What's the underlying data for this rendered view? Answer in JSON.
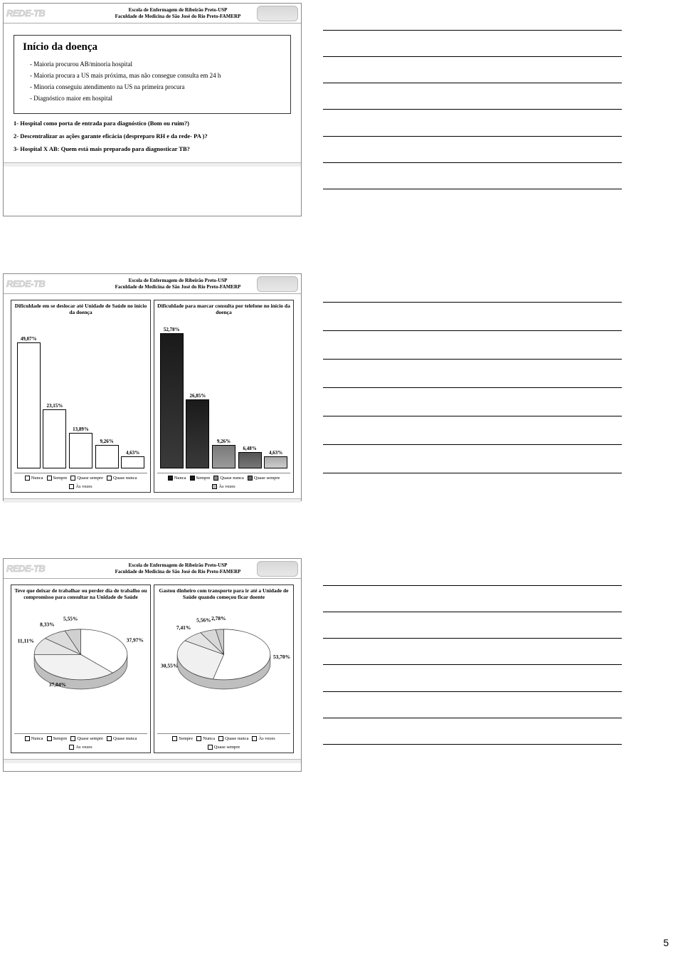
{
  "page_number": "5",
  "header": {
    "logo": "REDE-TB",
    "line1": "Escola de Enfermagem de Ribeirão Preto-USP",
    "line2": "Faculdade de Medicina de São José do Rio Preto-FAMERP"
  },
  "slide1": {
    "title": "Início da doença",
    "bullets": [
      "Maioria procurou  AB/minoria hospital",
      "Maioria procura a US mais próxima, mas não consegue consulta em 24 h",
      "Minoria conseguiu atendimento na US na primeira procura",
      "Diagnóstico maior em hospital"
    ],
    "questions": [
      "1- Hospital como porta de entrada para diagnóstico (Bom ou ruim?)",
      "2- Descentralizar as ações garante eficácia (despreparo RH e da rede- PA )?",
      "3- Hospital X AB: Quem está mais preparado para diagnosticar TB?"
    ]
  },
  "slide2": {
    "chart_left": {
      "title": "Dificuldade em se deslocar até Unidade de Saúde no início da doença",
      "type": "bar",
      "max": 52.78,
      "bars": [
        {
          "label": "49,07%",
          "value": 49.07,
          "cls": "white"
        },
        {
          "label": "23,15%",
          "value": 23.15,
          "cls": "white"
        },
        {
          "label": "13,89%",
          "value": 13.89,
          "cls": "white"
        },
        {
          "label": "9,26%",
          "value": 9.26,
          "cls": "white"
        },
        {
          "label": "4,63%",
          "value": 4.63,
          "cls": "white"
        }
      ],
      "legend": [
        "Nunca",
        "Sempre",
        "Quase sempre",
        "Quase nunca",
        "Às vezes"
      ],
      "legend_cls": [
        "white",
        "white",
        "white",
        "white",
        "white"
      ]
    },
    "chart_right": {
      "title": "Dificuldade para marcar consulta por telefone no início da doença",
      "type": "bar",
      "max": 52.78,
      "bars": [
        {
          "label": "52,78%",
          "value": 52.78,
          "cls": "black"
        },
        {
          "label": "26,85%",
          "value": 26.85,
          "cls": "black"
        },
        {
          "label": "9,26%",
          "value": 9.26,
          "cls": "gray1"
        },
        {
          "label": "6,48%",
          "value": 6.48,
          "cls": "gray2"
        },
        {
          "label": "4,63%",
          "value": 4.63,
          "cls": "gray3"
        }
      ],
      "legend": [
        "Nunca",
        "Sempre",
        "Quase nunca",
        "Quase sempre",
        "Às vezes"
      ],
      "legend_cls": [
        "black",
        "black",
        "g1",
        "g2",
        "g3"
      ]
    }
  },
  "slide3": {
    "chart_left": {
      "title": "Teve que deixar de trabalhar ou perder dia de trabalho ou compromisso para consultar na Unidade de Saúde",
      "type": "pie",
      "slices": [
        {
          "label": "37,97%",
          "value": 37.97,
          "color": "#ffffff"
        },
        {
          "label": "37,04%",
          "value": 37.04,
          "color": "#f2f2f2"
        },
        {
          "label": "11,11%",
          "value": 11.11,
          "color": "#e6e6e6"
        },
        {
          "label": "8,33%",
          "value": 8.33,
          "color": "#dcdcdc"
        },
        {
          "label": "5,55%",
          "value": 5.55,
          "color": "#d0d0d0"
        }
      ],
      "legend": [
        "Nunca",
        "Sempre",
        "Quase sempre",
        "Quase nunca",
        "As vezes"
      ]
    },
    "chart_right": {
      "title": "Gastou dinheiro com transporte para ir até a Unidade de Saúde quando começou ficar doente",
      "type": "pie",
      "slices": [
        {
          "label": "53,70%",
          "value": 53.7,
          "color": "#ffffff"
        },
        {
          "label": "30,55%",
          "value": 30.55,
          "color": "#f0f0f0"
        },
        {
          "label": "7,41%",
          "value": 7.41,
          "color": "#e4e4e4"
        },
        {
          "label": "5,56%",
          "value": 5.56,
          "color": "#d8d8d8"
        },
        {
          "label": "2,78%",
          "value": 2.78,
          "color": "#cccccc"
        }
      ],
      "legend": [
        "Sempre",
        "Nunca",
        "Quase nunca",
        "Às vezes",
        "Quase sempre"
      ]
    }
  },
  "notes_line_count": 7
}
